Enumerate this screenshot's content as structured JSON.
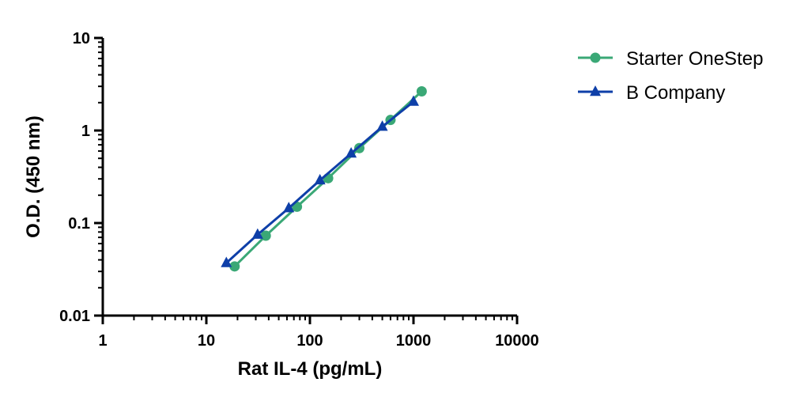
{
  "chart_data": {
    "type": "line",
    "title": "",
    "xlabel": "Rat IL-4 (pg/mL)",
    "ylabel": "O.D. (450 nm)",
    "xscale": "log",
    "yscale": "log",
    "xlim": [
      1,
      10000
    ],
    "ylim": [
      0.01,
      10
    ],
    "xticks": [
      1,
      10,
      100,
      1000,
      10000
    ],
    "xtick_labels": [
      "1",
      "10",
      "100",
      "1000",
      "10000"
    ],
    "yticks": [
      0.01,
      0.1,
      1,
      10
    ],
    "ytick_labels": [
      "0.01",
      "0.1",
      "1",
      "10"
    ],
    "grid": false,
    "legend_position": "top-right-outside",
    "series": [
      {
        "name": "Starter OneStep",
        "color": "#3aa876",
        "marker": "circle",
        "x": [
          18.75,
          37.5,
          75,
          150,
          300,
          600,
          1200
        ],
        "y": [
          0.034,
          0.073,
          0.15,
          0.305,
          0.645,
          1.3,
          2.65
        ]
      },
      {
        "name": "B Company",
        "color": "#0e3fa8",
        "marker": "triangle",
        "x": [
          15.6,
          31.25,
          62.5,
          125,
          250,
          500,
          1000
        ],
        "y": [
          0.037,
          0.075,
          0.145,
          0.29,
          0.565,
          1.1,
          2.05
        ]
      }
    ]
  }
}
